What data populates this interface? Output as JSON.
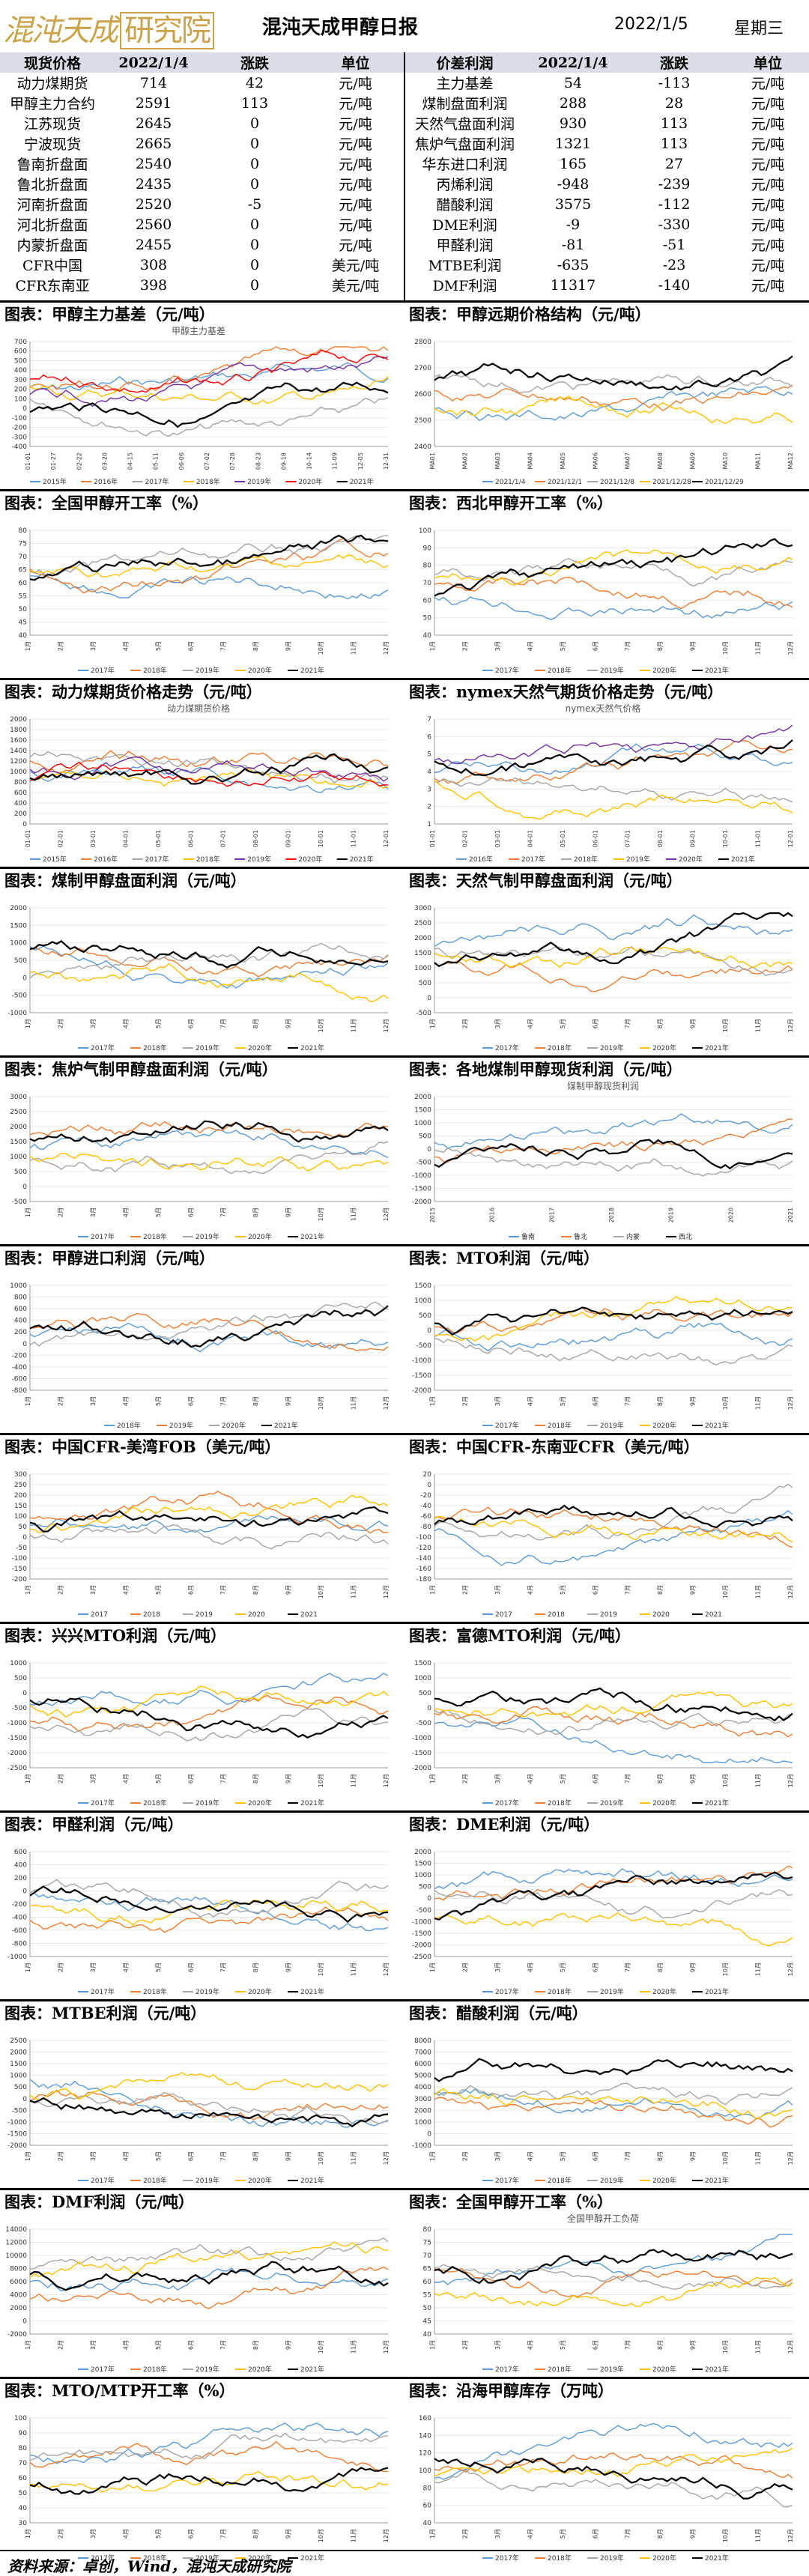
{
  "header": {
    "logo_text": "混沌天成",
    "logo_box": "研究院",
    "title": "混沌天成甲醇日报",
    "date": "2022/1/5",
    "weekday": "星期三"
  },
  "table": {
    "left_headers": [
      "现货价格",
      "2022/1/4",
      "涨跌",
      "单位"
    ],
    "right_headers": [
      "价差利润",
      "2022/1/4",
      "涨跌",
      "单位"
    ],
    "left_rows": [
      [
        "动力煤期货",
        "714",
        "42",
        "元/吨"
      ],
      [
        "甲醇主力合约",
        "2591",
        "113",
        "元/吨"
      ],
      [
        "江苏现货",
        "2645",
        "0",
        "元/吨"
      ],
      [
        "宁波现货",
        "2665",
        "0",
        "元/吨"
      ],
      [
        "鲁南折盘面",
        "2540",
        "0",
        "元/吨"
      ],
      [
        "鲁北折盘面",
        "2435",
        "0",
        "元/吨"
      ],
      [
        "河南折盘面",
        "2520",
        "-5",
        "元/吨"
      ],
      [
        "河北折盘面",
        "2560",
        "0",
        "元/吨"
      ],
      [
        "内蒙折盘面",
        "2455",
        "0",
        "元/吨"
      ],
      [
        "CFR中国",
        "308",
        "0",
        "美元/吨"
      ],
      [
        "CFR东南亚",
        "398",
        "0",
        "美元/吨"
      ]
    ],
    "right_rows": [
      [
        "主力基差",
        "54",
        "-113",
        "元/吨"
      ],
      [
        "煤制盘面利润",
        "288",
        "28",
        "元/吨"
      ],
      [
        "天然气盘面利润",
        "930",
        "113",
        "元/吨"
      ],
      [
        "焦炉气盘面利润",
        "1321",
        "113",
        "元/吨"
      ],
      [
        "华东进口利润",
        "165",
        "27",
        "元/吨"
      ],
      [
        "丙烯利润",
        "-948",
        "-239",
        "元/吨"
      ],
      [
        "醋酸利润",
        "3575",
        "-112",
        "元/吨"
      ],
      [
        "DME利润",
        "-9",
        "-330",
        "元/吨"
      ],
      [
        "甲醛利润",
        "-81",
        "-51",
        "元/吨"
      ],
      [
        "MTBE利润",
        "-635",
        "-23",
        "元/吨"
      ],
      [
        "DMF利润",
        "11317",
        "-140",
        "元/吨"
      ]
    ]
  },
  "panels": [
    {
      "title": "图表：甲醇主力基差（元/吨）",
      "inner": "甲醇主力基差",
      "legend": [
        "2015年",
        "2016年",
        "2017年",
        "2018年",
        "2019年",
        "2020年",
        "2021年"
      ],
      "yt": [
        "700",
        "600",
        "500",
        "400",
        "300",
        "200",
        "100",
        "0",
        "-100",
        "-200",
        "-300",
        "-400"
      ],
      "xt": [
        "01-01",
        "01-27",
        "02-22",
        "03-20",
        "04-15",
        "05-11",
        "06-06",
        "07-02",
        "07-28",
        "08-23",
        "09-18",
        "10-14",
        "11-09",
        "12-05",
        "12-31"
      ]
    },
    {
      "title": "图表：甲醇远期价格结构（元/吨）",
      "inner": "",
      "legend": [
        "2021/1/4",
        "2021/12/1",
        "2021/12/8",
        "2021/12/28",
        "2021/12/29"
      ],
      "yt": [
        "2800",
        "2700",
        "2600",
        "2500",
        "2400"
      ],
      "xt": [
        "MA01",
        "MA02",
        "MA03",
        "MA04",
        "MA05",
        "MA06",
        "MA07",
        "MA08",
        "MA09",
        "MA10",
        "MA11",
        "MA12"
      ]
    },
    {
      "title": "图表：全国甲醇开工率（%）",
      "inner": "",
      "legend": [
        "2017年",
        "2018年",
        "2019年",
        "2020年",
        "2021年"
      ],
      "yt": [
        "80",
        "75",
        "70",
        "65",
        "60",
        "55",
        "50",
        "45",
        "40"
      ],
      "xt": [
        "1月",
        "2月",
        "3月",
        "4月",
        "5月",
        "6月",
        "7月",
        "8月",
        "9月",
        "10月",
        "11月",
        "12月"
      ]
    },
    {
      "title": "图表：西北甲醇开工率（%）",
      "inner": "",
      "legend": [
        "2017年",
        "2018年",
        "2019年",
        "2020年",
        "2021年"
      ],
      "yt": [
        "100",
        "90",
        "80",
        "70",
        "60",
        "50",
        "40"
      ],
      "xt": [
        "1月",
        "2月",
        "3月",
        "4月",
        "5月",
        "6月",
        "7月",
        "8月",
        "9月",
        "10月",
        "11月",
        "12月"
      ]
    },
    {
      "title": "图表：动力煤期货价格走势（元/吨）",
      "inner": "动力煤期货价格",
      "legend": [
        "2015年",
        "2016年",
        "2017年",
        "2018年",
        "2019年",
        "2020年",
        "2021年"
      ],
      "yt": [
        "2000",
        "1800",
        "1600",
        "1400",
        "1200",
        "1000",
        "800",
        "600",
        "400",
        "200",
        "0"
      ],
      "xt": [
        "01-01",
        "02-01",
        "03-01",
        "04-01",
        "05-01",
        "06-01",
        "07-01",
        "08-01",
        "09-01",
        "10-01",
        "11-01",
        "12-01"
      ]
    },
    {
      "title": "图表：nymex天然气期货价格走势（元/吨）",
      "inner": "nymex天然气价格",
      "legend": [
        "2016年",
        "2017年",
        "2018年",
        "2019年",
        "2020年",
        "2021年"
      ],
      "yt": [
        "7",
        "6",
        "5",
        "4",
        "3",
        "2",
        "1"
      ],
      "xt": [
        "01-01",
        "02-01",
        "03-01",
        "04-01",
        "05-01",
        "06-01",
        "07-01",
        "08-01",
        "09-01",
        "10-01",
        "11-01",
        "12-01"
      ]
    },
    {
      "title": "图表：煤制甲醇盘面利润（元/吨）",
      "inner": "",
      "legend": [
        "2017年",
        "2018年",
        "2019年",
        "2020年",
        "2021年"
      ],
      "yt": [
        "2000",
        "1500",
        "1000",
        "500",
        "0",
        "-500",
        "-1000"
      ],
      "xt": [
        "1月",
        "2月",
        "3月",
        "4月",
        "5月",
        "6月",
        "7月",
        "8月",
        "9月",
        "10月",
        "11月",
        "12月"
      ]
    },
    {
      "title": "图表：天然气制甲醇盘面利润（元/吨）",
      "inner": "",
      "legend": [
        "2017年",
        "2018年",
        "2019年",
        "2020年",
        "2021年"
      ],
      "yt": [
        "3000",
        "2500",
        "2000",
        "1500",
        "1000",
        "500",
        "0",
        "-500"
      ],
      "xt": [
        "1月",
        "2月",
        "3月",
        "4月",
        "5月",
        "6月",
        "7月",
        "8月",
        "9月",
        "10月",
        "11月",
        "12月"
      ]
    },
    {
      "title": "图表：焦炉气制甲醇盘面利润（元/吨）",
      "inner": "",
      "legend": [
        "2017年",
        "2018年",
        "2019年",
        "2020年",
        "2021年"
      ],
      "yt": [
        "3000",
        "2500",
        "2000",
        "1500",
        "1000",
        "500",
        "0",
        "-500"
      ],
      "xt": [
        "1月",
        "2月",
        "3月",
        "4月",
        "5月",
        "6月",
        "7月",
        "8月",
        "9月",
        "10月",
        "11月",
        "12月"
      ]
    },
    {
      "title": "图表：各地煤制甲醇现货利润（元/吨）",
      "inner": "煤制甲醇现货利润",
      "legend": [
        "鲁南",
        "鲁北",
        "内蒙",
        "西北"
      ],
      "yt": [
        "2000",
        "1500",
        "1000",
        "500",
        "0",
        "-500",
        "-1000",
        "-1500",
        "-2000"
      ],
      "xt": [
        "2015",
        "2016",
        "2017",
        "2018",
        "2019",
        "2020",
        "2021"
      ]
    },
    {
      "title": "图表：甲醇进口利润（元/吨）",
      "inner": "",
      "legend": [
        "2018年",
        "2019年",
        "2020年",
        "2021年"
      ],
      "yt": [
        "1000",
        "800",
        "600",
        "400",
        "200",
        "0",
        "-200",
        "-400",
        "-600",
        "-800"
      ],
      "xt": [
        "1月",
        "2月",
        "3月",
        "4月",
        "5月",
        "6月",
        "7月",
        "8月",
        "9月",
        "10月",
        "11月",
        "12月"
      ]
    },
    {
      "title": "图表：MTO利润（元/吨）",
      "inner": "",
      "legend": [
        "2017年",
        "2018年",
        "2019年",
        "2020年",
        "2021年"
      ],
      "yt": [
        "1500",
        "1000",
        "500",
        "0",
        "-500",
        "-1000",
        "-1500",
        "-2000"
      ],
      "xt": [
        "1月",
        "2月",
        "3月",
        "4月",
        "5月",
        "6月",
        "7月",
        "8月",
        "9月",
        "10月",
        "11月",
        "12月"
      ]
    },
    {
      "title": "图表：中国CFR-美湾FOB（美元/吨）",
      "inner": "",
      "legend": [
        "2017",
        "2018",
        "2019",
        "2020",
        "2021"
      ],
      "yt": [
        "300",
        "250",
        "200",
        "150",
        "100",
        "50",
        "0",
        "-50",
        "-100",
        "-150",
        "-200"
      ],
      "xt": [
        "1月",
        "2月",
        "3月",
        "4月",
        "5月",
        "6月",
        "7月",
        "8月",
        "9月",
        "10月",
        "11月",
        "12月"
      ]
    },
    {
      "title": "图表：中国CFR-东南亚CFR（美元/吨）",
      "inner": "",
      "legend": [
        "2017",
        "2018",
        "2019",
        "2020",
        "2021"
      ],
      "yt": [
        "20",
        "0",
        "-20",
        "-40",
        "-60",
        "-80",
        "-100",
        "-120",
        "-140",
        "-160",
        "-180"
      ],
      "xt": [
        "1月",
        "2月",
        "3月",
        "4月",
        "5月",
        "6月",
        "7月",
        "8月",
        "9月",
        "10月",
        "11月",
        "12月"
      ]
    },
    {
      "title": "图表：兴兴MTO利润（元/吨）",
      "inner": "",
      "legend": [
        "2017年",
        "2018年",
        "2019年",
        "2020年",
        "2021年"
      ],
      "yt": [
        "1000",
        "500",
        "0",
        "-500",
        "-1000",
        "-1500",
        "-2000",
        "-2500"
      ],
      "xt": [
        "1月",
        "2月",
        "3月",
        "4月",
        "5月",
        "6月",
        "7月",
        "8月",
        "9月",
        "10月",
        "11月",
        "12月"
      ]
    },
    {
      "title": "图表：富德MTO利润（元/吨）",
      "inner": "",
      "legend": [
        "2017年",
        "2018年",
        "2019年",
        "2020年",
        "2021年"
      ],
      "yt": [
        "1500",
        "1000",
        "500",
        "0",
        "-500",
        "-1000",
        "-1500",
        "-2000"
      ],
      "xt": [
        "1月",
        "2月",
        "3月",
        "4月",
        "5月",
        "6月",
        "7月",
        "8月",
        "9月",
        "10月",
        "11月",
        "12月"
      ]
    },
    {
      "title": "图表：甲醛利润（元/吨）",
      "inner": "",
      "legend": [
        "2017年",
        "2018年",
        "2019年",
        "2020年",
        "2021年"
      ],
      "yt": [
        "600",
        "400",
        "200",
        "0",
        "-200",
        "-400",
        "-600",
        "-800",
        "-1000"
      ],
      "xt": [
        "1月",
        "2月",
        "3月",
        "4月",
        "5月",
        "6月",
        "7月",
        "8月",
        "9月",
        "10月",
        "11月",
        "12月"
      ]
    },
    {
      "title": "图表：DME利润（元/吨）",
      "inner": "",
      "legend": [
        "2017年",
        "2018年",
        "2019年",
        "2020年",
        "2021年"
      ],
      "yt": [
        "2000",
        "1500",
        "1000",
        "500",
        "0",
        "-500",
        "-1000",
        "-1500",
        "-2000",
        "-2500"
      ],
      "xt": [
        "1月",
        "2月",
        "3月",
        "4月",
        "5月",
        "6月",
        "7月",
        "8月",
        "9月",
        "10月",
        "11月",
        "12月"
      ]
    },
    {
      "title": "图表：MTBE利润（元/吨）",
      "inner": "",
      "legend": [
        "2017年",
        "2018年",
        "2019年",
        "2020年",
        "2021年"
      ],
      "yt": [
        "2500",
        "2000",
        "1500",
        "1000",
        "500",
        "0",
        "-500",
        "-1000",
        "-1500",
        "-2000"
      ],
      "xt": [
        "1月",
        "2月",
        "3月",
        "4月",
        "5月",
        "6月",
        "7月",
        "8月",
        "9月",
        "10月",
        "11月",
        "12月"
      ]
    },
    {
      "title": "图表：醋酸利润（元/吨）",
      "inner": "",
      "legend": [
        "2017年",
        "2018年",
        "2019年",
        "2020年",
        "2021年"
      ],
      "yt": [
        "8000",
        "7000",
        "6000",
        "5000",
        "4000",
        "3000",
        "2000",
        "1000",
        "0",
        "-1000"
      ],
      "xt": [
        "1月",
        "2月",
        "3月",
        "4月",
        "5月",
        "6月",
        "7月",
        "8月",
        "9月",
        "10月",
        "11月",
        "12月"
      ]
    },
    {
      "title": "图表：DMF利润（元/吨）",
      "inner": "",
      "legend": [
        "2017年",
        "2018年",
        "2019年",
        "2020年",
        "2021年"
      ],
      "yt": [
        "14000",
        "12000",
        "10000",
        "8000",
        "6000",
        "4000",
        "2000",
        "0",
        "-2000"
      ],
      "xt": [
        "1月",
        "2月",
        "3月",
        "4月",
        "5月",
        "6月",
        "7月",
        "8月",
        "9月",
        "10月",
        "11月",
        "12月"
      ]
    },
    {
      "title": "图表：全国甲醇开工率（%）",
      "inner": "全国甲醇开工负荷",
      "legend": [
        "2017年",
        "2018年",
        "2019年",
        "2020年",
        "2021年"
      ],
      "yt": [
        "80",
        "75",
        "70",
        "65",
        "60",
        "55",
        "50",
        "45",
        "40"
      ],
      "xt": [
        "1月",
        "2月",
        "3月",
        "4月",
        "5月",
        "6月",
        "7月",
        "8月",
        "9月",
        "10月",
        "11月",
        "12月"
      ]
    },
    {
      "title": "图表：MTO/MTP开工率（%）",
      "inner": "",
      "legend": [
        "2017年",
        "2018年",
        "2019年",
        "2020年",
        "2021年"
      ],
      "yt": [
        "100",
        "90",
        "80",
        "70",
        "60",
        "50",
        "40",
        "30"
      ],
      "xt": [
        "1月",
        "2月",
        "3月",
        "4月",
        "5月",
        "6月",
        "7月",
        "8月",
        "9月",
        "10月",
        "11月",
        "12月"
      ]
    },
    {
      "title": "图表：沿海甲醇库存（万吨）",
      "inner": "",
      "legend": [
        "2017年",
        "2018年",
        "2019年",
        "2020年",
        "2021年"
      ],
      "yt": [
        "160",
        "140",
        "120",
        "100",
        "80",
        "60",
        "40"
      ],
      "xt": [
        "1月",
        "2月",
        "3月",
        "4月",
        "5月",
        "6月",
        "7月",
        "8月",
        "9月",
        "10月",
        "11月",
        "12月"
      ]
    }
  ],
  "footer": {
    "text": "资料来源：卓创，Wind，混沌天成研究院"
  },
  "colors": {
    "header_bg": "#d9dee6",
    "logo": "#c9a24a",
    "s1": "#5b9bd5",
    "s2": "#ed7d31",
    "s3": "#a5a5a5",
    "s4": "#ffc000",
    "s5": "#7030a0",
    "s6": "#ff0000",
    "s7": "#000000"
  }
}
